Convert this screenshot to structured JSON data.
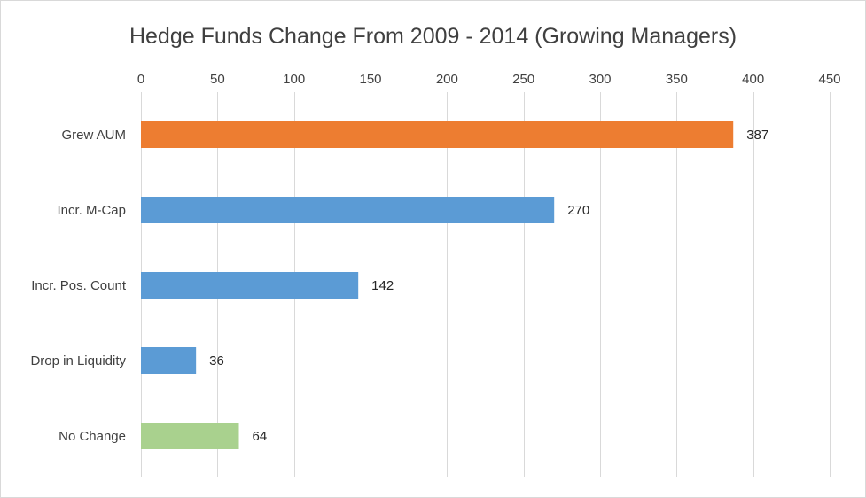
{
  "chart_data": {
    "type": "bar",
    "orientation": "horizontal",
    "title": "Hedge Funds Change From 2009 - 2014 (Growing Managers)",
    "categories": [
      "Grew AUM",
      "Incr. M-Cap",
      "Incr. Pos. Count",
      "Drop in Liquidity",
      "No Change"
    ],
    "values": [
      387,
      270,
      142,
      36,
      64
    ],
    "colors": [
      "#ed7d31",
      "#5b9bd5",
      "#5b9bd5",
      "#5b9bd5",
      "#a9d18e"
    ],
    "x_ticks": [
      0,
      50,
      100,
      150,
      200,
      250,
      300,
      350,
      400,
      450
    ],
    "xlim": [
      0,
      450
    ],
    "x_axis_position": "top",
    "grid": true,
    "legend": "none",
    "data_labels": true
  }
}
